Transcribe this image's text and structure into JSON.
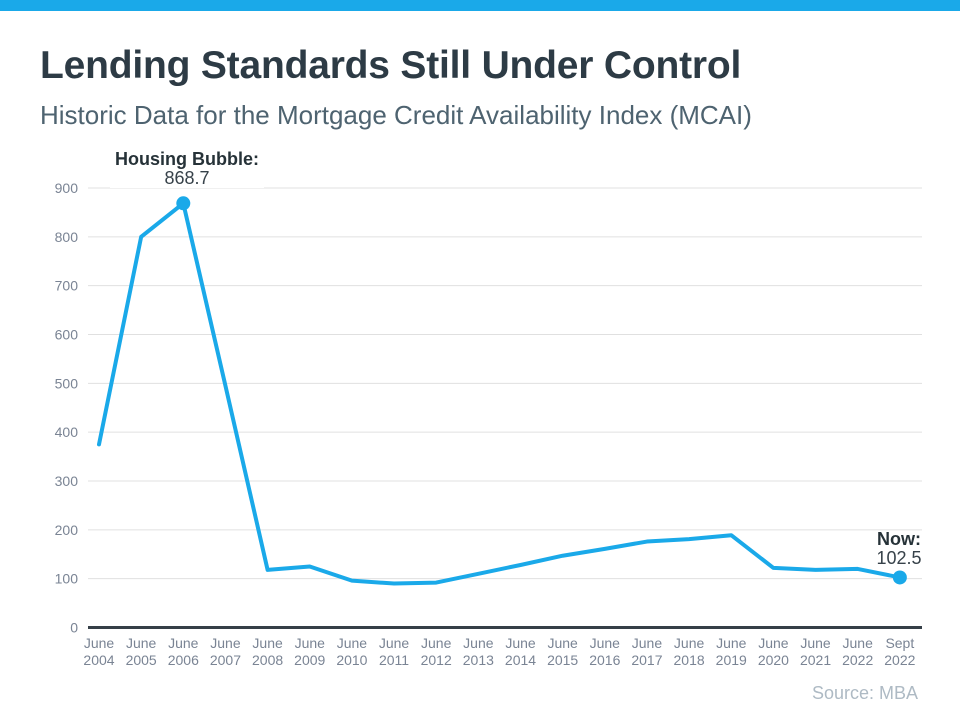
{
  "header": {
    "title": "Lending Standards Still Under Control",
    "subtitle": "Historic Data for the Mortgage Credit Availability Index (MCAI)"
  },
  "chart_data": {
    "type": "line",
    "title": "Historic Data for the Mortgage Credit Availability Index (MCAI)",
    "categories": [
      "June 2004",
      "June 2005",
      "June 2006",
      "June 2007",
      "June 2008",
      "June 2009",
      "June 2010",
      "June 2011",
      "June 2012",
      "June 2013",
      "June 2014",
      "June 2015",
      "June 2016",
      "June 2017",
      "June 2018",
      "June 2019",
      "June 2020",
      "June 2021",
      "June 2022",
      "Sept 2022"
    ],
    "values": [
      375,
      800,
      868.7,
      495,
      118,
      125,
      96,
      90,
      92,
      110,
      128,
      147,
      161,
      176,
      181,
      189,
      122,
      118,
      120,
      102.5
    ],
    "ylim": [
      0,
      900
    ],
    "ytick_step": 100,
    "grid": "horizontal",
    "legend": "none",
    "marker_indices": [
      2,
      19
    ],
    "annotations": [
      {
        "label": "Housing Bubble:",
        "value": "868.7"
      },
      {
        "label": "Now:",
        "value": "102.5"
      }
    ]
  },
  "footer": {
    "source": "Source: MBA"
  },
  "colors": {
    "accent_blue": "#1AA9E9",
    "title_text": "#2D3B45",
    "subtitle_text": "#4E6370",
    "axis_labels": "#7A8494",
    "gridline": "#E0E0E0",
    "zero_axis": "#353F47",
    "annotation_text": "#263238",
    "source_text": "#AEBAC4"
  }
}
